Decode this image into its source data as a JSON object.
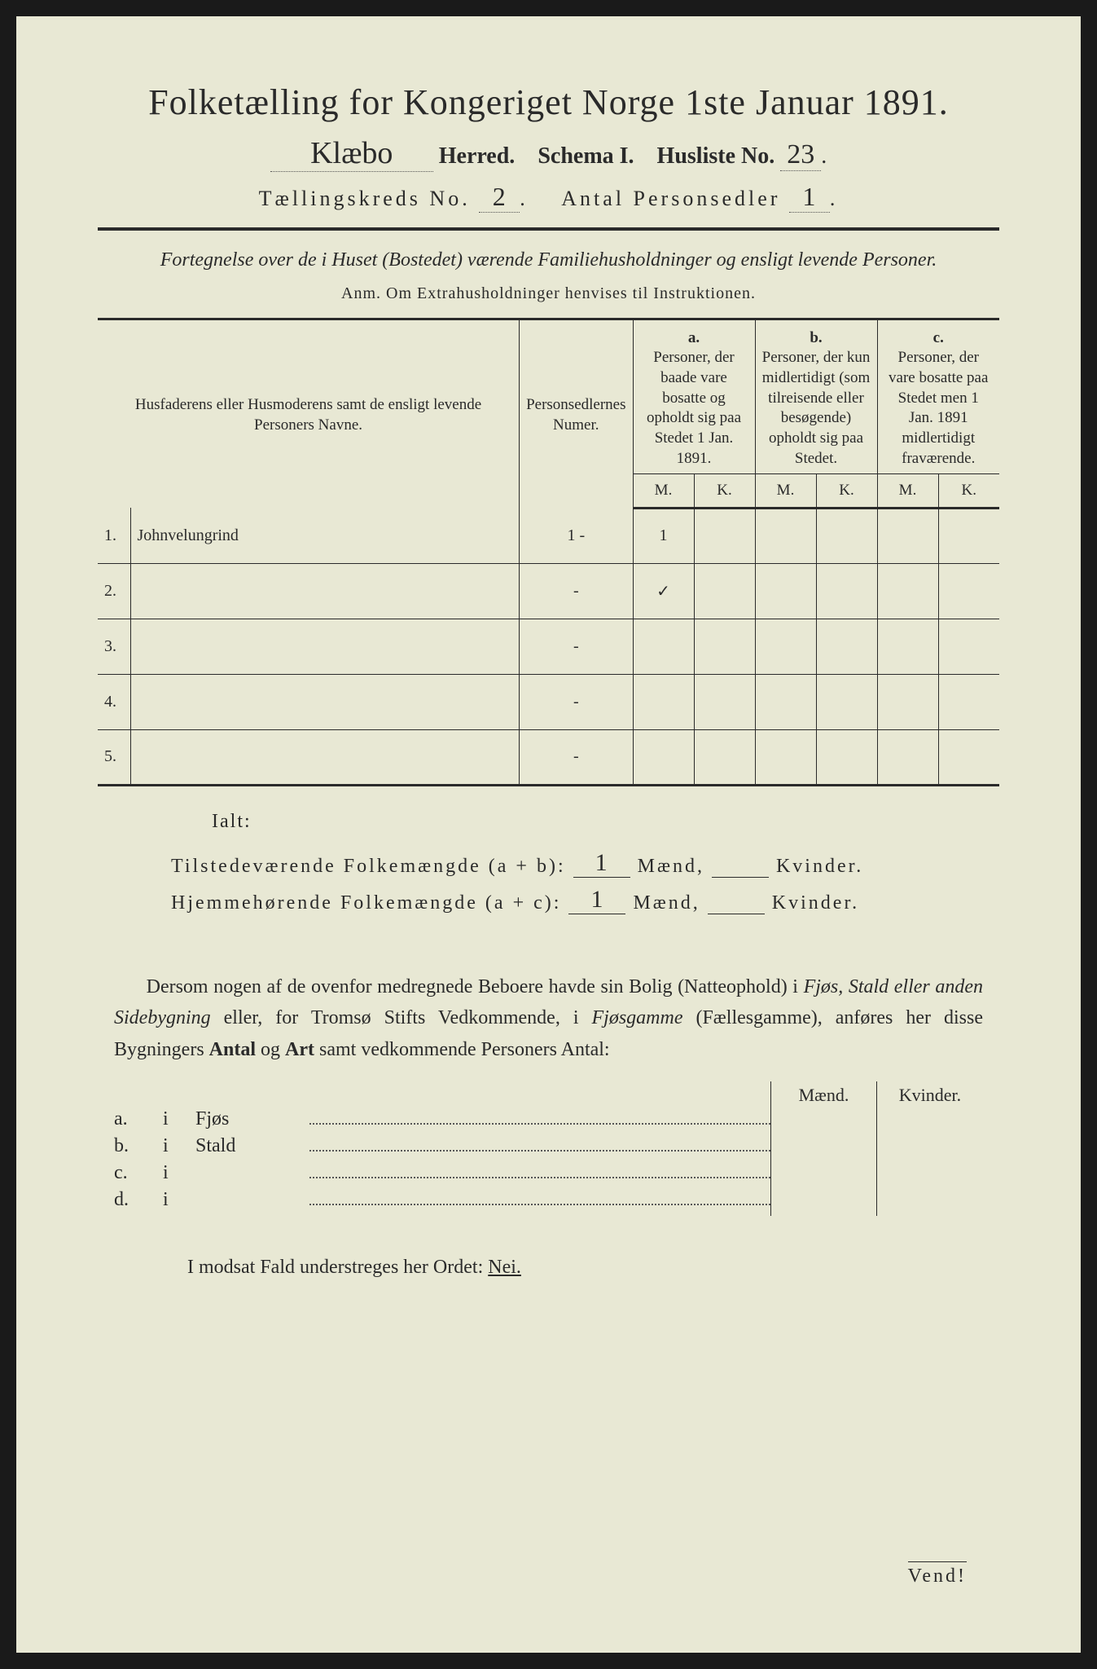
{
  "title": "Folketælling for Kongeriget Norge 1ste Januar 1891.",
  "herred_script": "Klæbo",
  "herred_label": "Herred.",
  "schema_label": "Schema I.",
  "husliste_label": "Husliste No.",
  "husliste_no": "23",
  "kreds_label": "Tællingskreds No.",
  "kreds_no": "2",
  "sedler_label": "Antal Personsedler",
  "sedler_no": "1",
  "subtitle": "Fortegnelse over de i Huset (Bostedet) værende Familiehusholdninger og ensligt levende Personer.",
  "anm": "Anm.  Om Extrahusholdninger henvises til Instruktionen.",
  "headers": {
    "name": "Husfaderens eller Husmoderens samt de ensligt levende Personers Navne.",
    "numer": "Personsedlernes Numer.",
    "a_label": "a.",
    "a_text": "Personer, der baade vare bosatte og opholdt sig paa Stedet 1 Jan. 1891.",
    "b_label": "b.",
    "b_text": "Personer, der kun midlertidigt (som tilreisende eller besøgende) opholdt sig paa Stedet.",
    "c_label": "c.",
    "c_text": "Personer, der vare bosatte paa Stedet men 1 Jan. 1891 midlertidigt fraværende.",
    "m": "M.",
    "k": "K."
  },
  "rows": [
    {
      "n": "1.",
      "name": "Johnvelungrind",
      "numer": "1 -",
      "aM": "1",
      "aK": "",
      "bM": "",
      "bK": "",
      "cM": "",
      "cK": ""
    },
    {
      "n": "2.",
      "name": "",
      "numer": "-",
      "aM": "✓",
      "aK": "",
      "bM": "",
      "bK": "",
      "cM": "",
      "cK": ""
    },
    {
      "n": "3.",
      "name": "",
      "numer": "-",
      "aM": "",
      "aK": "",
      "bM": "",
      "bK": "",
      "cM": "",
      "cK": ""
    },
    {
      "n": "4.",
      "name": "",
      "numer": "-",
      "aM": "",
      "aK": "",
      "bM": "",
      "bK": "",
      "cM": "",
      "cK": ""
    },
    {
      "n": "5.",
      "name": "",
      "numer": "-",
      "aM": "",
      "aK": "",
      "bM": "",
      "bK": "",
      "cM": "",
      "cK": ""
    }
  ],
  "ialt": "Ialt:",
  "summary1_label": "Tilstedeværende Folkemængde (a + b):",
  "summary2_label": "Hjemmehørende Folkemængde (a + c):",
  "summary1_m": "1",
  "summary1_k": "",
  "summary2_m": "1",
  "summary2_k": "",
  "maend": "Mænd,",
  "kvinder": "Kvinder.",
  "para_pre": "Dersom nogen af de ovenfor medregnede Beboere havde sin Bolig (Natteophold) i ",
  "para_it1": "Fjøs, Stald eller anden Sidebygning",
  "para_mid1": " eller, for Tromsø Stifts Vedkommende, i ",
  "para_it2": "Fjøsgamme",
  "para_mid2": " (Fællesgamme), anføres her disse Bygningers ",
  "para_b1": "Antal",
  "para_mid3": " og ",
  "para_b2": "Art",
  "para_end": " samt vedkommende Personers Antal:",
  "lower_header_m": "Mænd.",
  "lower_header_k": "Kvinder.",
  "lower_rows": [
    {
      "lbl": "a.",
      "i": "i",
      "kind": "Fjøs"
    },
    {
      "lbl": "b.",
      "i": "i",
      "kind": "Stald"
    },
    {
      "lbl": "c.",
      "i": "i",
      "kind": ""
    },
    {
      "lbl": "d.",
      "i": "i",
      "kind": ""
    }
  ],
  "nei_pre": "I modsat Fald understreges her Ordet: ",
  "nei": "Nei.",
  "vend": "Vend!"
}
